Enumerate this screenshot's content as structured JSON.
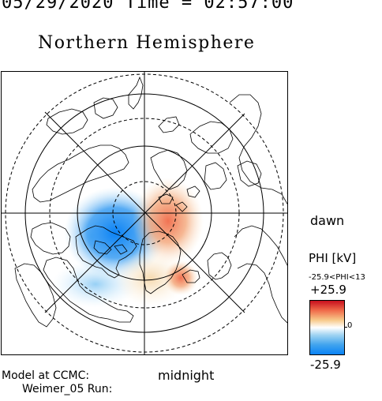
{
  "header": {
    "date_time": "05/29/2020 Time = 02:57:00",
    "title": "Northern Hemisphere"
  },
  "map": {
    "direction_right": "dawn",
    "direction_bottom": "midnight"
  },
  "footer": {
    "model_line1": "Model at CCMC:",
    "model_line2": "Weimer_05 Run:"
  },
  "legend": {
    "title": "PHI [kV]",
    "range": "-25.9<PHI<13",
    "max_label": "+25.9",
    "mid_label": "0",
    "min_label": "-25.9",
    "colors": {
      "positive": "#c80f1e",
      "zero": "#ffffff",
      "negative": "#0a82f5"
    }
  }
}
